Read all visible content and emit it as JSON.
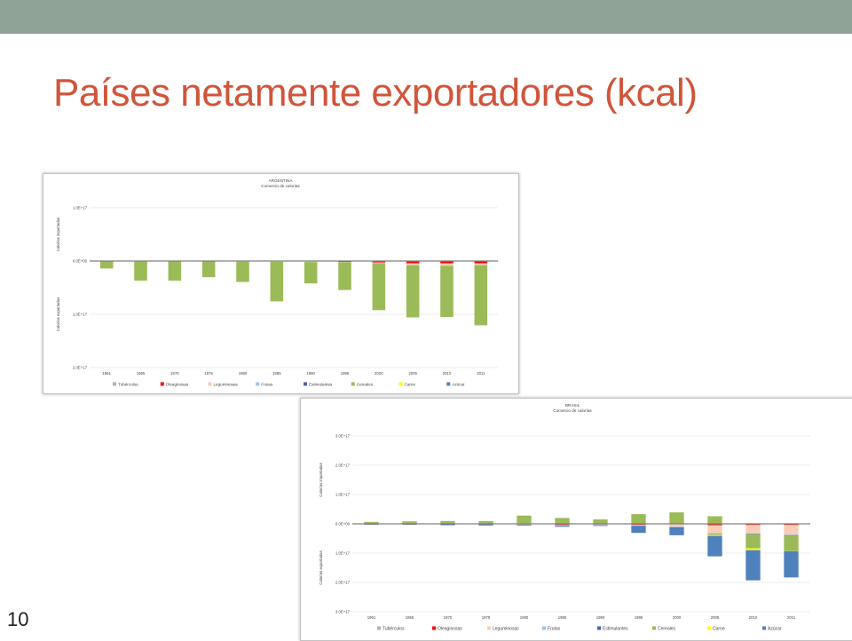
{
  "slide": {
    "title": "Países netamente exportadores (kcal)",
    "page_number": "10",
    "colors": {
      "top_bar": "#8fa396",
      "title": "#d0553b"
    }
  },
  "legend_labels": [
    "Tubérculos",
    "Oleaginosas",
    "Leguminosas",
    "Frutas",
    "Estimulantes",
    "Cereales",
    "Carne",
    "Azúcar"
  ],
  "legend_colors": [
    "#b2b2b2",
    "#ff0000",
    "#f9cdb5",
    "#9dc3e6",
    "#4f5fa8",
    "#9bbb59",
    "#ffff00",
    "#4f81bd"
  ],
  "chart_data": [
    {
      "type": "bar",
      "stacked": true,
      "title": "ARGENTINA",
      "subtitle": "Comercio de calorías",
      "ylabel_top": "Calorías importadas",
      "ylabel_bottom": "Calorías exportadas",
      "ylim": [
        -2e+17,
        1e+17
      ],
      "yticks": [
        1e+17,
        0,
        -1e+17,
        -2e+17
      ],
      "ytick_labels": [
        "1.0E+17",
        "0.0E+00",
        "1.0E+17",
        "2.0E+17"
      ],
      "categories": [
        "1961",
        "1965",
        "1970",
        "1975",
        "1980",
        "1985",
        "1990",
        "1995",
        "2000",
        "2005",
        "2010",
        "2011"
      ],
      "legend_position": "bottom",
      "series": [
        {
          "name": "Tubérculos",
          "values": [
            0,
            0,
            0,
            0,
            0,
            0,
            0,
            0,
            0,
            0,
            0,
            0
          ]
        },
        {
          "name": "Oleaginosas",
          "values": [
            0,
            0,
            0,
            0,
            -300000000000000.0,
            -700000000000000.0,
            -1000000000000000.0,
            -1600000000000000.0,
            -2800000000000000.0,
            -4300000000000000.0,
            -4500000000000000.0,
            -4200000000000000.0
          ]
        },
        {
          "name": "Leguminosas",
          "values": [
            0,
            0,
            0,
            -300000000000000.0,
            -1000000000000000.0,
            -1000000000000000.0,
            -1000000000000000.0,
            -800000000000000.0,
            -1400000000000000.0,
            -3500000000000000.0,
            -4500000000000000.0,
            -3500000000000000.0
          ]
        },
        {
          "name": "Frutas",
          "values": [
            0,
            0,
            0,
            0,
            0,
            0,
            0,
            0,
            0,
            0,
            0,
            0
          ]
        },
        {
          "name": "Estimulantes",
          "values": [
            0,
            0,
            0,
            0,
            0,
            0,
            0,
            0,
            0,
            0,
            0,
            0
          ]
        },
        {
          "name": "Cereales",
          "values": [
            -1.4e+16,
            -3.7e+16,
            -3.7e+16,
            -3e+16,
            -3.8e+16,
            -7.4e+16,
            -4e+16,
            -5.2e+16,
            -8.8e+16,
            -9.8e+16,
            -9.6e+16,
            -1.13e+17
          ]
        },
        {
          "name": "Carne",
          "values": [
            0,
            0,
            0,
            0,
            0,
            0,
            0,
            0,
            0,
            0,
            0,
            0
          ]
        },
        {
          "name": "Azúcar",
          "values": [
            0,
            0,
            0,
            0,
            0,
            0,
            0,
            0,
            0,
            0,
            0,
            0
          ]
        }
      ]
    },
    {
      "type": "bar",
      "stacked": true,
      "title": "BRASIL",
      "subtitle": "Comercio de calorías",
      "ylabel_top": "Calorías importadas",
      "ylabel_bottom": "Calorías exportadas",
      "ylim": [
        -3e+17,
        3e+17
      ],
      "yticks": [
        3e+17,
        2e+17,
        1e+17,
        0,
        -1e+17,
        -2e+17,
        -3e+17
      ],
      "ytick_labels": [
        "3.0E+17",
        "2.0E+17",
        "1.0E+17",
        "0.0E+00",
        "1.0E+17",
        "2.0E+17",
        "3.0E+17"
      ],
      "categories": [
        "1961",
        "1965",
        "1970",
        "1975",
        "1980",
        "1985",
        "1990",
        "1995",
        "2000",
        "2005",
        "2010",
        "2011"
      ],
      "legend_position": "bottom",
      "series": [
        {
          "name": "Tubérculos",
          "values": [
            500000000000000.0,
            500000000000000.0,
            500000000000000.0,
            500000000000000.0,
            1000000000000000.0,
            1000000000000000.0,
            1000000000000000.0,
            1000000000000000.0,
            1000000000000000.0,
            1000000000000000.0,
            1000000000000000.0,
            1000000000000000.0
          ]
        },
        {
          "name": "Oleaginosas",
          "values": [
            0,
            0,
            0,
            -1000000000000000.0,
            -2000000000000000.0,
            -3000000000000000.0,
            -2000000000000000.0,
            -3000000000000000.0,
            -2000000000000000.0,
            -5000000000000000.0,
            -4000000000000000.0,
            -4000000000000000.0
          ]
        },
        {
          "name": "Leguminosas",
          "values": [
            0,
            0,
            0,
            0,
            -1000000000000000.0,
            -1000000000000000.0,
            -1000000000000000.0,
            -2000000000000000.0,
            -8000000000000000.0,
            -2.8e+16,
            -2.9e+16,
            -3.3e+16
          ]
        },
        {
          "name": "Frutas",
          "values": [
            0,
            0,
            0,
            -1000000000000000.0,
            -1000000000000000.0,
            -2000000000000000.0,
            -2000000000000000.0,
            -2000000000000000.0,
            -2000000000000000.0,
            -2000000000000000.0,
            -2000000000000000.0,
            -2000000000000000.0
          ]
        },
        {
          "name": "Estimulantes",
          "values": [
            -3000000000000000.0,
            -3000000000000000.0,
            -3000000000000000.0,
            -2000000000000000.0,
            -2000000000000000.0,
            -2000000000000000.0,
            -2000000000000000.0,
            -2000000000000000.0,
            -2000000000000000.0,
            -2000000000000000.0,
            -1000000000000000.0,
            -1000000000000000.0
          ]
        },
        {
          "name": "Cereales",
          "values": [
            6000000000000000.0,
            8000000000000000.0,
            9000000000000000.0,
            9000000000000000.0,
            2.7e+16,
            1.9e+16,
            1.4e+16,
            3.2e+16,
            3.8e+16,
            2.5e+16,
            -4.8e+16,
            -5.2e+16
          ]
        },
        {
          "name": "Carne",
          "values": [
            0,
            0,
            0,
            0,
            0,
            0,
            0,
            0,
            0,
            -4000000000000000.0,
            -6000000000000000.0,
            -1000000000000000.0
          ]
        },
        {
          "name": "Azúcar",
          "values": [
            0,
            0,
            -1000000000000000.0,
            -2000000000000000.0,
            0,
            -2000000000000000.0,
            0,
            -2.2e+16,
            -2.5e+16,
            -7e+16,
            -1.03e+17,
            -9e+16
          ]
        }
      ]
    }
  ]
}
